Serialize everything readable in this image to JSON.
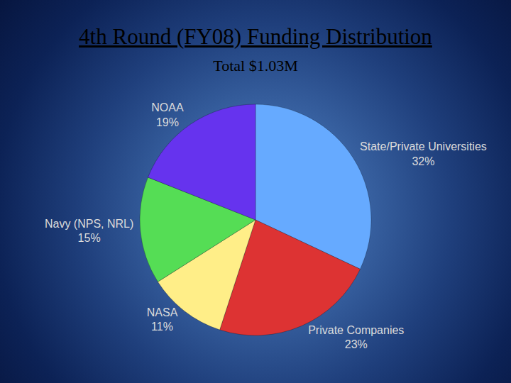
{
  "chart_data": {
    "type": "pie",
    "title": "4th Round (FY08) Funding Distribution",
    "subtitle": "Total $1.03M",
    "categories": [
      "State/Private Universities",
      "Private Companies",
      "NASA",
      "Navy (NPS, NRL)",
      "NOAA"
    ],
    "values": [
      32,
      23,
      11,
      15,
      19
    ],
    "value_labels": [
      "32%",
      "23%",
      "11%",
      "15%",
      "19%"
    ],
    "colors": [
      "#66aaff",
      "#dd3333",
      "#ffee88",
      "#55dd55",
      "#6633ee"
    ],
    "data_labels": true
  }
}
